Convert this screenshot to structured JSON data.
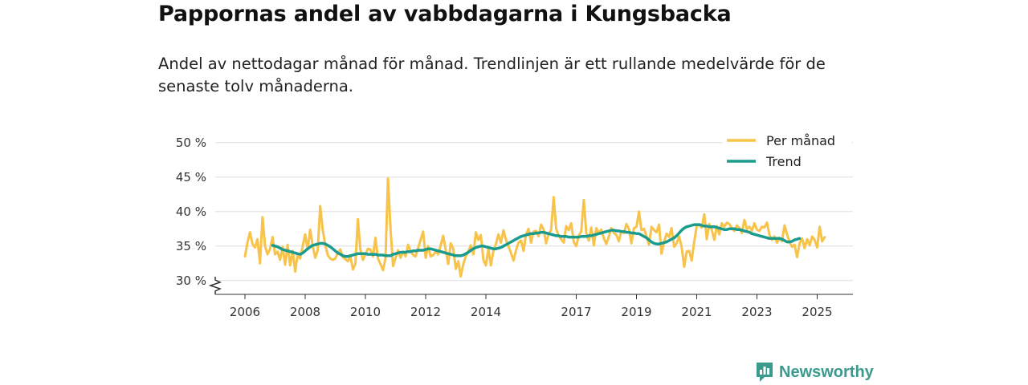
{
  "title": "Pappornas andel av vabbdagarna i Kungsbacka",
  "subtitle": "Andel av nettodagar månad för månad. Trendlinjen är ett rullande medelvärde för de senaste tolv månaderna.",
  "brand": {
    "name": "Newsworthy",
    "icon": "newsworthy-logo-icon"
  },
  "colors": {
    "monthly": "#f8c34b",
    "trend": "#1a9b8e",
    "grid": "#dddddd",
    "axis": "#333333"
  },
  "chart_data": {
    "type": "line",
    "title": "Pappornas andel av vabbdagarna i Kungsbacka",
    "xlabel": "",
    "ylabel": "",
    "ylim": [
      27,
      50
    ],
    "xlim": [
      2005.6,
      2026.0
    ],
    "y_ticks": [
      30,
      35,
      40,
      45,
      50
    ],
    "y_tick_labels": [
      "30 %",
      "35 %",
      "40 %",
      "45 %",
      "50 %"
    ],
    "x_ticks": [
      2006,
      2008,
      2010,
      2012,
      2014,
      2017,
      2019,
      2021,
      2023,
      2025
    ],
    "x_tick_labels": [
      "2006",
      "2008",
      "2010",
      "2012",
      "2014",
      "2017",
      "2019",
      "2021",
      "2023",
      "2025"
    ],
    "grid": true,
    "legend_position": "top-right",
    "series": [
      {
        "name": "Per månad",
        "x_start": 2006.0,
        "step": 0.08333,
        "values": [
          33.5,
          35.5,
          37.0,
          35.3,
          34.8,
          36.0,
          32.5,
          39.2,
          35.0,
          33.8,
          34.6,
          36.3,
          33.8,
          34.2,
          33.0,
          34.9,
          32.3,
          35.2,
          32.2,
          34.3,
          31.3,
          33.8,
          33.2,
          35.0,
          36.7,
          34.5,
          37.4,
          35.0,
          33.3,
          34.4,
          40.8,
          37.3,
          35.2,
          33.7,
          33.2,
          33.0,
          33.2,
          34.0,
          34.5,
          33.4,
          33.1,
          32.8,
          33.5,
          31.6,
          32.4,
          38.9,
          34.5,
          33.0,
          33.8,
          34.6,
          34.5,
          33.5,
          36.2,
          33.2,
          32.4,
          31.5,
          33.2,
          44.8,
          37.6,
          32.1,
          33.3,
          34.4,
          33.3,
          34.2,
          33.5,
          35.2,
          34.3,
          33.7,
          33.5,
          34.7,
          35.9,
          37.1,
          33.3,
          35.0,
          33.5,
          33.7,
          34.2,
          33.8,
          35.1,
          36.5,
          34.4,
          32.4,
          35.4,
          34.6,
          31.7,
          32.8,
          30.6,
          32.4,
          33.5,
          34.2,
          35.1,
          33.8,
          37.0,
          35.9,
          36.6,
          33.0,
          32.2,
          34.6,
          32.2,
          34.3,
          35.3,
          36.7,
          35.5,
          37.3,
          35.9,
          35.0,
          34.0,
          32.9,
          34.4,
          35.5,
          35.8,
          34.3,
          36.7,
          37.5,
          35.5,
          37.1,
          37.2,
          36.4,
          38.1,
          37.4,
          35.4,
          36.8,
          37.3,
          42.1,
          37.5,
          36.5,
          36.0,
          35.5,
          37.9,
          37.3,
          38.3,
          35.6,
          35.0,
          36.5,
          37.1,
          41.7,
          36.9,
          35.8,
          37.7,
          35.1,
          37.6,
          36.9,
          37.4,
          36.1,
          35.3,
          36.4,
          37.6,
          36.9,
          36.6,
          35.7,
          37.2,
          36.9,
          38.2,
          37.5,
          35.4,
          37.6,
          37.8,
          40.0,
          37.3,
          37.5,
          36.4,
          35.2,
          37.8,
          37.3,
          37.0,
          38.1,
          33.9,
          35.6,
          36.8,
          36.3,
          37.6,
          34.9,
          35.4,
          36.4,
          34.9,
          32.0,
          34.2,
          34.3,
          32.9,
          35.6,
          37.9,
          38.1,
          37.7,
          39.6,
          36.0,
          38.2,
          37.4,
          35.9,
          37.9,
          36.7,
          38.3,
          37.8,
          38.4,
          38.2,
          37.6,
          37.2,
          38.0,
          37.6,
          36.9,
          38.8,
          37.5,
          37.8,
          37.2,
          38.3,
          37.4,
          37.2,
          37.8,
          37.7,
          38.4,
          36.6,
          35.9,
          36.4,
          35.5,
          36.2,
          35.7,
          38.0,
          36.7,
          35.6,
          34.9,
          35.2,
          33.4,
          35.4,
          36.1,
          34.7,
          36.0,
          35.1,
          36.4,
          35.9,
          34.8,
          37.8,
          35.7,
          36.3
        ]
      },
      {
        "name": "Trend",
        "x_start": 2006.917,
        "step": 0.08333,
        "values": [
          35.1,
          35.0,
          34.9,
          34.7,
          34.5,
          34.4,
          34.3,
          34.2,
          34.1,
          34.0,
          33.9,
          33.8,
          34.0,
          34.3,
          34.6,
          34.9,
          35.1,
          35.2,
          35.3,
          35.4,
          35.4,
          35.3,
          35.1,
          34.9,
          34.6,
          34.3,
          34.0,
          33.8,
          33.6,
          33.5,
          33.5,
          33.6,
          33.7,
          33.8,
          33.9,
          33.9,
          33.9,
          33.9,
          33.8,
          33.8,
          33.8,
          33.8,
          33.7,
          33.7,
          33.7,
          33.6,
          33.6,
          33.6,
          33.8,
          33.9,
          34.0,
          34.1,
          34.1,
          34.1,
          34.2,
          34.2,
          34.3,
          34.3,
          34.4,
          34.4,
          34.4,
          34.5,
          34.6,
          34.6,
          34.5,
          34.4,
          34.3,
          34.2,
          34.1,
          34.0,
          33.9,
          33.8,
          33.7,
          33.6,
          33.6,
          33.6,
          33.7,
          33.9,
          34.1,
          34.4,
          34.6,
          34.8,
          34.9,
          35.0,
          35.0,
          34.9,
          34.8,
          34.7,
          34.6,
          34.6,
          34.7,
          34.8,
          35.0,
          35.2,
          35.4,
          35.6,
          35.8,
          36.0,
          36.2,
          36.4,
          36.5,
          36.6,
          36.7,
          36.8,
          36.8,
          36.9,
          36.9,
          37.0,
          37.0,
          36.9,
          36.8,
          36.7,
          36.6,
          36.5,
          36.5,
          36.4,
          36.4,
          36.4,
          36.3,
          36.3,
          36.3,
          36.3,
          36.3,
          36.4,
          36.4,
          36.4,
          36.5,
          36.5,
          36.6,
          36.7,
          36.8,
          36.9,
          37.0,
          37.1,
          37.2,
          37.3,
          37.3,
          37.2,
          37.2,
          37.1,
          37.1,
          37.0,
          37.0,
          36.9,
          36.9,
          36.8,
          36.8,
          36.6,
          36.4,
          36.2,
          35.9,
          35.6,
          35.4,
          35.3,
          35.3,
          35.4,
          35.5,
          35.6,
          35.8,
          36.0,
          36.2,
          36.5,
          36.9,
          37.3,
          37.6,
          37.8,
          37.9,
          38.0,
          38.1,
          38.1,
          38.1,
          38.0,
          37.9,
          37.9,
          37.8,
          37.8,
          37.8,
          37.7,
          37.6,
          37.5,
          37.4,
          37.4,
          37.5,
          37.5,
          37.5,
          37.4,
          37.4,
          37.3,
          37.2,
          37.1,
          37.0,
          36.8,
          36.7,
          36.6,
          36.5,
          36.4,
          36.3,
          36.2,
          36.1,
          36.1,
          36.1,
          36.1,
          36.1,
          36.0,
          35.8,
          35.6,
          35.6,
          35.7,
          35.9,
          36.0,
          36.1
        ]
      }
    ]
  }
}
